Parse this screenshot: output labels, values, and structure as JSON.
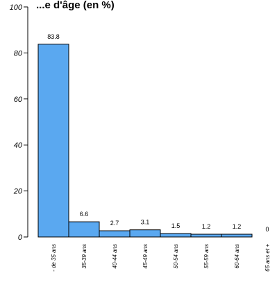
{
  "chart_data": {
    "type": "bar",
    "title": "...e d'âge (en %)",
    "categories": [
      "- de 35 ans",
      "35-39 ans",
      "40-44 ans",
      "45-49 ans",
      "50-54 ans",
      "55-59 ans",
      "60-64 ans",
      "65 ans et +"
    ],
    "values": [
      83.8,
      6.6,
      2.7,
      3.1,
      1.5,
      1.2,
      1.2,
      0
    ],
    "value_labels": [
      "83.8",
      "6.6",
      "2.7",
      "3.1",
      "1.5",
      "1.2",
      "1.2",
      "0"
    ],
    "yticks": [
      "0",
      "20",
      "40",
      "60",
      "80",
      "100"
    ],
    "ylim": [
      0,
      100
    ],
    "xlabel": "",
    "ylabel": "",
    "grid": false,
    "bar_color": "#5aa8f0"
  }
}
